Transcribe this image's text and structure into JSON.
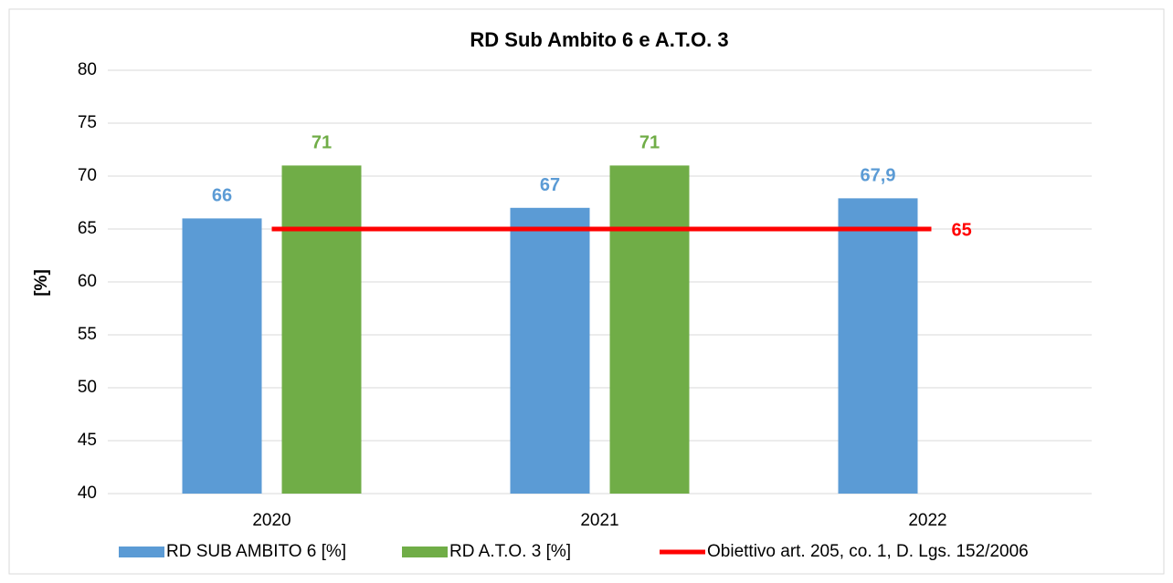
{
  "chart_data": {
    "type": "bar",
    "title": "RD Sub Ambito 6 e A.T.O. 3",
    "y_label": "[%]",
    "categories": [
      "2020",
      "2021",
      "2022"
    ],
    "series": [
      {
        "name": "RD SUB AMBITO 6 [%]",
        "type": "bar",
        "color": "#5b9bd5",
        "values": [
          66,
          67,
          67.9
        ],
        "value_labels": [
          "66",
          "67",
          "67,9"
        ]
      },
      {
        "name": "RD A.T.O. 3 [%]",
        "type": "bar",
        "color": "#70ad47",
        "values": [
          71,
          71,
          null
        ]
      },
      {
        "name": "Obiettivo art. 205, co. 1, D. Lgs. 152/2006",
        "type": "line",
        "color": "#ff0000",
        "values": [
          65,
          65,
          65
        ],
        "value_labels": [
          null,
          null,
          "65"
        ]
      }
    ],
    "ylim": [
      40,
      80
    ],
    "yticks": [
      40,
      45,
      50,
      55,
      60,
      65,
      70,
      75,
      80
    ],
    "grid": true,
    "legend": "bottom"
  }
}
